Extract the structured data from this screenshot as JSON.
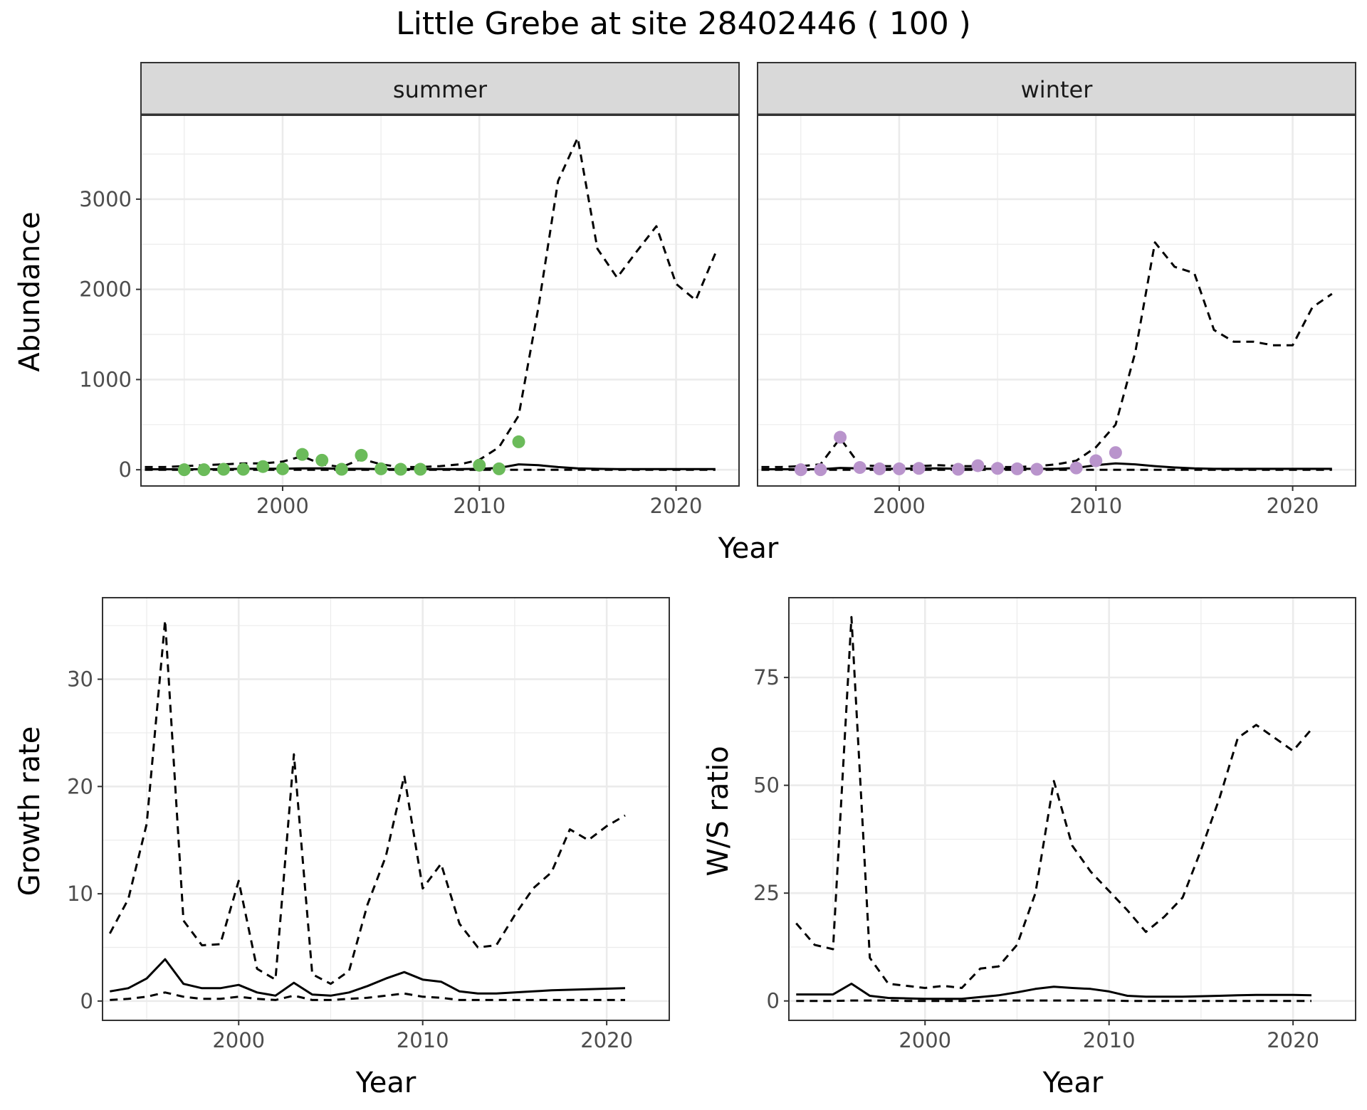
{
  "title": "Little Grebe at site 28402446 ( 100 )",
  "colors": {
    "summer_points": "#6bbb5a",
    "winter_points": "#b994cc",
    "line": "#000000",
    "strip_fill": "#d9d9d9",
    "grid": "#ebebeb"
  },
  "chart_data": [
    {
      "type": "line",
      "panel": "summer",
      "xlabel": "Year",
      "ylabel": "Abundance",
      "xlim": [
        1992.8,
        2023.2
      ],
      "ylim": [
        -180,
        3930
      ],
      "x_ticks": [
        2000,
        2010,
        2020
      ],
      "y_ticks": [
        0,
        1000,
        2000,
        3000
      ],
      "grid": true,
      "points": {
        "x": [
          1995,
          1996,
          1997,
          1998,
          1999,
          2000,
          2001,
          2002,
          2003,
          2004,
          2005,
          2006,
          2007,
          2010,
          2011,
          2012
        ],
        "y": [
          0,
          0,
          5,
          5,
          35,
          10,
          170,
          105,
          5,
          160,
          10,
          5,
          5,
          50,
          10,
          310
        ]
      },
      "series": [
        {
          "style": "solid",
          "x": [
            1993,
            1994,
            1995,
            1996,
            1997,
            1998,
            1999,
            2000,
            2001,
            2002,
            2003,
            2004,
            2005,
            2006,
            2007,
            2008,
            2009,
            2010,
            2011,
            2012,
            2013,
            2014,
            2015,
            2016,
            2017,
            2018,
            2019,
            2020,
            2021,
            2022
          ],
          "y": [
            5,
            5,
            5,
            5,
            8,
            10,
            12,
            12,
            15,
            15,
            10,
            10,
            8,
            8,
            8,
            8,
            8,
            10,
            20,
            60,
            50,
            30,
            15,
            10,
            8,
            8,
            8,
            8,
            8,
            8
          ]
        },
        {
          "style": "dashed",
          "x": [
            1993,
            1994,
            1995,
            1996,
            1997,
            1998,
            1999,
            2000,
            2001,
            2002,
            2003,
            2004,
            2005,
            2006,
            2007,
            2008,
            2009,
            2010,
            2011,
            2012,
            2013,
            2014,
            2015,
            2016,
            2017,
            2018,
            2019,
            2020,
            2021,
            2022
          ],
          "y": [
            30,
            30,
            40,
            50,
            60,
            70,
            70,
            90,
            150,
            60,
            30,
            120,
            60,
            30,
            30,
            40,
            60,
            110,
            250,
            600,
            1800,
            3200,
            3680,
            2450,
            2130,
            2420,
            2700,
            2060,
            1880,
            2400
          ]
        },
        {
          "style": "dashed",
          "x": [
            1993,
            1994,
            1995,
            1996,
            1997,
            1998,
            1999,
            2000,
            2001,
            2002,
            2003,
            2004,
            2005,
            2006,
            2007,
            2008,
            2009,
            2010,
            2011,
            2012,
            2013,
            2014,
            2015,
            2016,
            2017,
            2018,
            2019,
            2020,
            2021,
            2022
          ],
          "y": [
            0,
            0,
            0,
            0,
            0,
            0,
            0,
            0,
            0,
            0,
            0,
            0,
            0,
            0,
            0,
            0,
            0,
            0,
            0,
            0,
            0,
            0,
            0,
            0,
            0,
            0,
            0,
            0,
            0,
            0
          ]
        }
      ]
    },
    {
      "type": "line",
      "panel": "winter",
      "xlabel": "Year",
      "ylabel": "Abundance",
      "xlim": [
        1992.8,
        2023.2
      ],
      "ylim": [
        -180,
        3930
      ],
      "x_ticks": [
        2000,
        2010,
        2020
      ],
      "y_ticks": [
        0,
        1000,
        2000,
        3000
      ],
      "grid": true,
      "points": {
        "x": [
          1995,
          1996,
          1997,
          1998,
          1999,
          2000,
          2001,
          2003,
          2004,
          2005,
          2006,
          2007,
          2009,
          2010,
          2011
        ],
        "y": [
          0,
          0,
          360,
          25,
          10,
          10,
          15,
          5,
          45,
          15,
          10,
          5,
          20,
          100,
          190
        ]
      },
      "series": [
        {
          "style": "solid",
          "x": [
            1993,
            1994,
            1995,
            1996,
            1997,
            1998,
            1999,
            2000,
            2001,
            2002,
            2003,
            2004,
            2005,
            2006,
            2007,
            2008,
            2009,
            2010,
            2011,
            2012,
            2013,
            2014,
            2015,
            2016,
            2017,
            2018,
            2019,
            2020,
            2021,
            2022
          ],
          "y": [
            5,
            5,
            5,
            5,
            20,
            15,
            10,
            10,
            15,
            15,
            10,
            10,
            10,
            10,
            10,
            10,
            20,
            50,
            70,
            60,
            40,
            25,
            15,
            10,
            10,
            10,
            10,
            10,
            10,
            10
          ]
        },
        {
          "style": "dashed",
          "x": [
            1993,
            1994,
            1995,
            1996,
            1997,
            1998,
            1999,
            2000,
            2001,
            2002,
            2003,
            2004,
            2005,
            2006,
            2007,
            2008,
            2009,
            2010,
            2011,
            2012,
            2013,
            2014,
            2015,
            2016,
            2017,
            2018,
            2019,
            2020,
            2021,
            2022
          ],
          "y": [
            30,
            30,
            40,
            60,
            350,
            50,
            40,
            40,
            40,
            50,
            40,
            40,
            30,
            30,
            40,
            60,
            100,
            250,
            500,
            1300,
            2520,
            2250,
            2180,
            1550,
            1420,
            1420,
            1380,
            1380,
            1800,
            1950
          ]
        },
        {
          "style": "dashed",
          "x": [
            1993,
            1994,
            1995,
            1996,
            1997,
            1998,
            1999,
            2000,
            2001,
            2002,
            2003,
            2004,
            2005,
            2006,
            2007,
            2008,
            2009,
            2010,
            2011,
            2012,
            2013,
            2014,
            2015,
            2016,
            2017,
            2018,
            2019,
            2020,
            2021,
            2022
          ],
          "y": [
            0,
            0,
            0,
            0,
            0,
            0,
            0,
            0,
            0,
            0,
            0,
            0,
            0,
            0,
            0,
            0,
            0,
            0,
            0,
            0,
            0,
            0,
            0,
            0,
            0,
            0,
            0,
            0,
            0,
            0
          ]
        }
      ]
    },
    {
      "type": "line",
      "panel": "growth",
      "xlabel": "Year",
      "ylabel": "Growth rate",
      "xlim": [
        1992.6,
        2023.4
      ],
      "ylim": [
        -1.8,
        37.6
      ],
      "x_ticks": [
        2000,
        2010,
        2020
      ],
      "y_ticks": [
        0,
        10,
        20,
        30
      ],
      "grid": true,
      "series": [
        {
          "style": "solid",
          "x": [
            1993,
            1994,
            1995,
            1996,
            1997,
            1998,
            1999,
            2000,
            2001,
            2002,
            2003,
            2004,
            2005,
            2006,
            2007,
            2008,
            2009,
            2010,
            2011,
            2012,
            2013,
            2014,
            2015,
            2016,
            2017,
            2018,
            2019,
            2020,
            2021
          ],
          "y": [
            0.9,
            1.2,
            2.1,
            3.9,
            1.6,
            1.2,
            1.2,
            1.5,
            0.8,
            0.5,
            1.7,
            0.6,
            0.5,
            0.8,
            1.4,
            2.1,
            2.7,
            2.0,
            1.8,
            0.9,
            0.7,
            0.7,
            0.8,
            0.9,
            1.0,
            1.05,
            1.1,
            1.15,
            1.2
          ]
        },
        {
          "style": "dashed",
          "x": [
            1993,
            1994,
            1995,
            1996,
            1997,
            1998,
            1999,
            2000,
            2001,
            2002,
            2003,
            2004,
            2005,
            2006,
            2007,
            2008,
            2009,
            2010,
            2011,
            2012,
            2013,
            2014,
            2015,
            2016,
            2017,
            2018,
            2019,
            2020,
            2021
          ],
          "y": [
            6.3,
            9.5,
            16.5,
            35.5,
            7.5,
            5.2,
            5.3,
            11.2,
            3.0,
            2.0,
            23.0,
            2.5,
            1.6,
            2.8,
            9.0,
            13.5,
            21.0,
            10.5,
            12.8,
            7.2,
            5.0,
            5.2,
            8.0,
            10.5,
            12.0,
            16.0,
            15.0,
            16.3,
            17.3
          ]
        },
        {
          "style": "dashed",
          "x": [
            1993,
            1994,
            1995,
            1996,
            1997,
            1998,
            1999,
            2000,
            2001,
            2002,
            2003,
            2004,
            2005,
            2006,
            2007,
            2008,
            2009,
            2010,
            2011,
            2012,
            2013,
            2014,
            2015,
            2016,
            2017,
            2018,
            2019,
            2020,
            2021
          ],
          "y": [
            0.1,
            0.2,
            0.4,
            0.8,
            0.4,
            0.2,
            0.2,
            0.4,
            0.2,
            0.1,
            0.5,
            0.1,
            0.1,
            0.2,
            0.3,
            0.5,
            0.7,
            0.4,
            0.3,
            0.1,
            0.1,
            0.1,
            0.1,
            0.1,
            0.1,
            0.1,
            0.1,
            0.1,
            0.1
          ]
        }
      ]
    },
    {
      "type": "line",
      "panel": "ratio",
      "xlabel": "Year",
      "ylabel": "W/S ratio",
      "xlim": [
        1992.6,
        2023.4
      ],
      "ylim": [
        -4.5,
        93.5
      ],
      "x_ticks": [
        2000,
        2010,
        2020
      ],
      "y_ticks": [
        0,
        25,
        50,
        75
      ],
      "grid": true,
      "series": [
        {
          "style": "solid",
          "x": [
            1993,
            1994,
            1995,
            1996,
            1997,
            1998,
            1999,
            2000,
            2001,
            2002,
            2003,
            2004,
            2005,
            2006,
            2007,
            2008,
            2009,
            2010,
            2011,
            2012,
            2013,
            2014,
            2015,
            2016,
            2017,
            2018,
            2019,
            2020,
            2021
          ],
          "y": [
            1.5,
            1.5,
            1.5,
            4.0,
            1.2,
            0.7,
            0.6,
            0.5,
            0.5,
            0.5,
            0.9,
            1.3,
            2.0,
            2.8,
            3.3,
            3.0,
            2.8,
            2.2,
            1.2,
            1.0,
            1.0,
            1.0,
            1.1,
            1.2,
            1.3,
            1.4,
            1.4,
            1.4,
            1.3
          ]
        },
        {
          "style": "dashed",
          "x": [
            1993,
            1994,
            1995,
            1996,
            1997,
            1998,
            1999,
            2000,
            2001,
            2002,
            2003,
            2004,
            2005,
            2006,
            2007,
            2008,
            2009,
            2010,
            2011,
            2012,
            2013,
            2014,
            2015,
            2016,
            2017,
            2018,
            2019,
            2020,
            2021
          ],
          "y": [
            18.0,
            13.0,
            12.0,
            89.0,
            10.0,
            4.0,
            3.5,
            3.0,
            3.5,
            3.0,
            7.5,
            8.0,
            13.0,
            25.0,
            51.0,
            36.0,
            30.0,
            25.5,
            21.0,
            16.0,
            19.5,
            24.0,
            35.0,
            47.0,
            61.0,
            64.0,
            61.0,
            58.0,
            63.0
          ]
        },
        {
          "style": "dashed",
          "x": [
            1993,
            1994,
            1995,
            1996,
            1997,
            1998,
            1999,
            2000,
            2001,
            2002,
            2003,
            2004,
            2005,
            2006,
            2007,
            2008,
            2009,
            2010,
            2011,
            2012,
            2013,
            2014,
            2015,
            2016,
            2017,
            2018,
            2019,
            2020,
            2021
          ],
          "y": [
            0,
            0,
            0,
            0.1,
            0.1,
            0.1,
            0,
            0,
            0,
            0,
            0,
            0.1,
            0.1,
            0.1,
            0.1,
            0.1,
            0.1,
            0.1,
            0,
            0,
            0,
            0,
            0,
            0,
            0,
            0,
            0,
            0,
            0
          ]
        }
      ]
    }
  ]
}
